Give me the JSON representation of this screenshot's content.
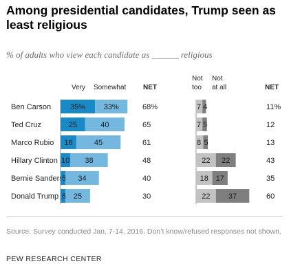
{
  "title": "Among presidential candidates, Trump seen as least religious",
  "subtitle": "% of adults who view each candidate as ______ religious",
  "source": "Source: Survey conducted Jan. 7-14, 2016. Don’t know/refused responses not shown.",
  "brand": "PEW RESEARCH CENTER",
  "colors": {
    "very": "#1a8ac7",
    "somewhat": "#74b8e0",
    "not_too": "#c2c2c2",
    "not_at_all": "#7f7f7f",
    "axis": "#9a9a9a"
  },
  "chart_data": {
    "type": "bar",
    "orientation": "horizontal",
    "stacked": true,
    "categories": [
      "Ben Carson",
      "Ted Cruz",
      "Marco Rubio",
      "Hillary Clinton",
      "Bernie Sanders",
      "Donald Trump"
    ],
    "left_panel": {
      "headers": {
        "very": "Very",
        "somewhat": "Somewhat",
        "net": "NET"
      },
      "series": [
        {
          "name": "Very",
          "values": [
            35,
            25,
            16,
            10,
            5,
            5
          ],
          "labels": [
            "35%",
            "25",
            "16",
            "10",
            "5",
            "5"
          ]
        },
        {
          "name": "Somewhat",
          "values": [
            33,
            40,
            45,
            38,
            34,
            25
          ],
          "labels": [
            "33%",
            "40",
            "45",
            "38",
            "34",
            "25"
          ]
        }
      ],
      "net": [
        "68%",
        "65",
        "61",
        "48",
        "40",
        "30"
      ]
    },
    "right_panel": {
      "headers": {
        "not_too_1": "Not",
        "not_too_2": "too",
        "not_at_all_1": "Not",
        "not_at_all_2": "at all",
        "net": "NET"
      },
      "series": [
        {
          "name": "Not too",
          "values": [
            7,
            7,
            8,
            22,
            18,
            22
          ],
          "labels": [
            "7",
            "7",
            "8",
            "22",
            "18",
            "22"
          ]
        },
        {
          "name": "Not at all",
          "values": [
            4,
            5,
            5,
            22,
            17,
            37
          ],
          "labels": [
            "4",
            "5",
            "5",
            "22",
            "17",
            "37"
          ]
        }
      ],
      "net": [
        "11%",
        "12",
        "13",
        "43",
        "35",
        "60"
      ]
    }
  }
}
